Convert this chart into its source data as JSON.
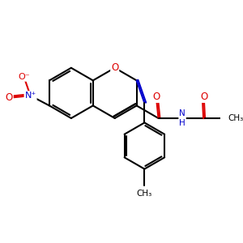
{
  "bg_color": "#ffffff",
  "black": "#000000",
  "red": "#dd0000",
  "blue": "#0000cc",
  "bond_lw": 1.5,
  "figsize": [
    3.0,
    3.0
  ],
  "dpi": 100,
  "xlim": [
    0,
    10
  ],
  "ylim": [
    0,
    10
  ]
}
